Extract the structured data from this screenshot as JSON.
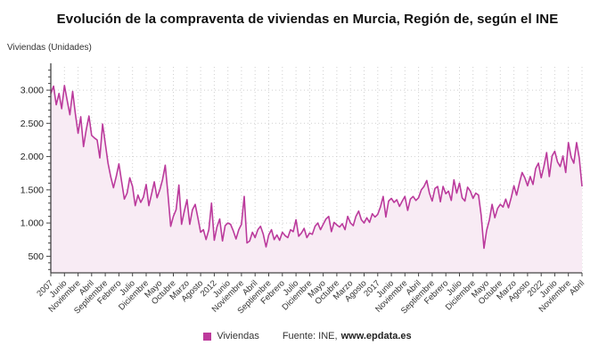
{
  "header": {
    "title": "Evolución de la compraventa de viviendas en Murcia, Región de, según el INE"
  },
  "yaxis_unit_label": "Viviendas (Unidades)",
  "legend": {
    "label": "Viviendas",
    "swatch_color": "#bd3a9c"
  },
  "footer": {
    "source_prefix": "Fuente: INE,",
    "source_link": "www.epdata.es"
  },
  "colors": {
    "line": "#bb3a9c",
    "area_fill": "#f8ebf4",
    "grid": "#cfcfcf",
    "axis": "#444444",
    "tick_text": "#333333"
  },
  "chart_data": {
    "type": "area",
    "title": "Evolución de la compraventa de viviendas en Murcia, Región de, según el INE",
    "ylabel": "Viviendas (Unidades)",
    "xlabel": "",
    "frequency": "monthly",
    "x_range_description": "Enero 2007 a Abril 2023, un punto por mes",
    "x_tick_interval_months": 5,
    "x_tick_labels": [
      "2007",
      "Junio",
      "Noviembre",
      "Abril",
      "Septiembre",
      "Febrero",
      "Julio",
      "Diciembre",
      "Mayo",
      "Octubre",
      "Marzo",
      "Agosto",
      "2012",
      "Junio",
      "Noviembre",
      "Abril",
      "Septiembre",
      "Febrero",
      "Julio",
      "Diciembre",
      "Mayo",
      "Octubre",
      "Marzo",
      "Agosto",
      "2017",
      "Junio",
      "Noviembre",
      "Abril",
      "Septiembre",
      "Febrero",
      "Julio",
      "Diciembre",
      "Mayo",
      "Octubre",
      "Marzo",
      "Agosto",
      "2022",
      "Junio",
      "Noviembre",
      "Abril"
    ],
    "y_ticks": [
      500,
      1000,
      1500,
      2000,
      2500,
      3000
    ],
    "y_tick_labels": [
      "500",
      "1.000",
      "1.500",
      "2.000",
      "2.500",
      "3.000"
    ],
    "ylim": [
      250,
      3350
    ],
    "grid": "dotted",
    "legend_position": "bottom",
    "series": [
      {
        "name": "Viviendas",
        "color": "#bb3a9c",
        "values": [
          2950,
          3060,
          2780,
          2950,
          2720,
          3070,
          2850,
          2630,
          2980,
          2650,
          2350,
          2600,
          2150,
          2400,
          2610,
          2320,
          2280,
          2250,
          1980,
          2490,
          2200,
          1900,
          1700,
          1530,
          1700,
          1890,
          1620,
          1360,
          1450,
          1680,
          1550,
          1260,
          1420,
          1310,
          1390,
          1580,
          1260,
          1440,
          1620,
          1380,
          1500,
          1650,
          1870,
          1440,
          950,
          1100,
          1200,
          1570,
          980,
          1180,
          1350,
          980,
          1200,
          1280,
          1080,
          860,
          900,
          750,
          900,
          1300,
          740,
          940,
          1060,
          730,
          960,
          1000,
          980,
          880,
          760,
          900,
          980,
          1400,
          700,
          730,
          860,
          780,
          900,
          950,
          830,
          640,
          820,
          900,
          750,
          820,
          740,
          860,
          810,
          780,
          900,
          870,
          1050,
          800,
          850,
          920,
          780,
          850,
          830,
          950,
          1000,
          900,
          980,
          1060,
          1100,
          870,
          1010,
          970,
          940,
          990,
          900,
          1100,
          1000,
          960,
          1100,
          1180,
          1050,
          1000,
          1080,
          1010,
          1140,
          1090,
          1130,
          1240,
          1400,
          1090,
          1330,
          1370,
          1310,
          1350,
          1250,
          1330,
          1400,
          1190,
          1360,
          1400,
          1340,
          1380,
          1500,
          1550,
          1640,
          1450,
          1330,
          1520,
          1550,
          1320,
          1550,
          1440,
          1480,
          1340,
          1650,
          1450,
          1600,
          1380,
          1330,
          1540,
          1480,
          1370,
          1450,
          1420,
          1110,
          620,
          890,
          1050,
          1280,
          1080,
          1220,
          1280,
          1240,
          1360,
          1230,
          1380,
          1560,
          1420,
          1600,
          1760,
          1680,
          1560,
          1700,
          1580,
          1820,
          1900,
          1680,
          1850,
          2060,
          1700,
          2010,
          2080,
          1920,
          1850,
          2010,
          1760,
          2210,
          1990,
          1900,
          2210,
          1980,
          1550
        ]
      }
    ]
  }
}
